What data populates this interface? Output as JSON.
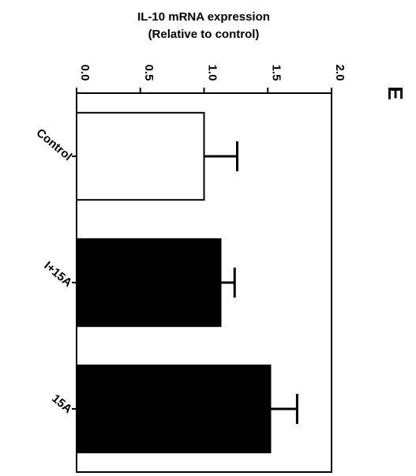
{
  "chart_data": {
    "type": "bar",
    "orientation": "horizontal",
    "xlabel": [
      "IL-10 mRNA expression",
      "(Relative to control)"
    ],
    "panel_label": "E",
    "categories": [
      "Control",
      "I+15A",
      "15A"
    ],
    "values": [
      1.0,
      1.13,
      1.52
    ],
    "errors": [
      0.26,
      0.11,
      0.21
    ],
    "bar_colors": [
      "#ffffff",
      "#000000",
      "#000000"
    ],
    "xlim": [
      0,
      2
    ],
    "xticks": [
      {
        "value": 0,
        "label": "0.0"
      },
      {
        "value": 0.5,
        "label": "0.5"
      },
      {
        "value": 1,
        "label": "1.0"
      },
      {
        "value": 1.5,
        "label": "1.5"
      },
      {
        "value": 2,
        "label": "2.0"
      }
    ]
  }
}
